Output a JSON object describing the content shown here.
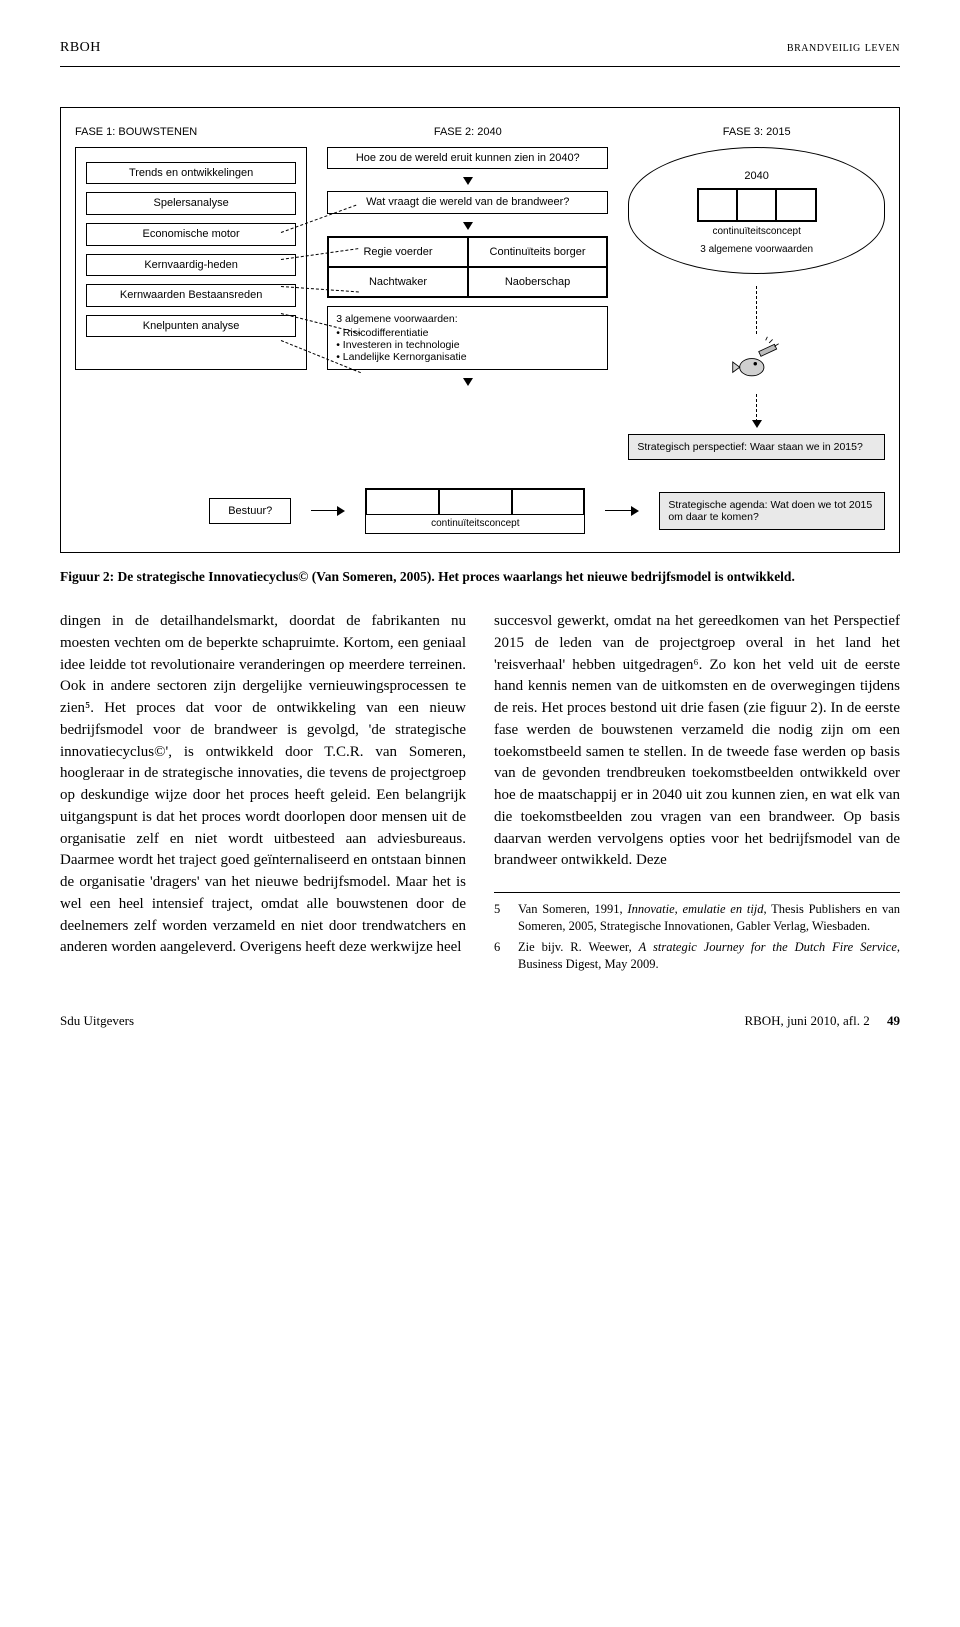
{
  "header": {
    "left": "RBOH",
    "right": "brandveilig leven"
  },
  "fig": {
    "col1": {
      "label": "FASE 1: BOUWSTENEN",
      "items": [
        "Trends en ontwikkelingen",
        "Spelersanalyse",
        "Economische motor",
        "Kernvaardig-heden",
        "Kernwaarden Bestaansreden",
        "Knelpunten analyse"
      ],
      "bestuur": "Bestuur?"
    },
    "col2": {
      "label": "FASE 2: 2040",
      "q1": "Hoe zou de wereld eruit kunnen zien in 2040?",
      "q2": "Wat vraagt die wereld van de brandweer?",
      "grid": [
        "Regie voerder",
        "Continuïteits borger",
        "Nachtwaker",
        "Naoberschap"
      ],
      "bul_title": "3 algemene voorwaarden:",
      "bul": [
        "• Risicodifferentiatie",
        "• Investeren in technologie",
        "• Landelijke Kernorganisatie"
      ],
      "cont": "continuïteitsconcept"
    },
    "col3": {
      "label": "FASE 3: 2015",
      "year": "2040",
      "cont": "continuïteitsconcept",
      "vw": "3 algemene voorwaarden",
      "sp": "Strategisch perspectief: Waar staan we in 2015?",
      "sa": "Strategische agenda: Wat doen we tot 2015 om daar te komen?"
    }
  },
  "caption": "Figuur 2: De strategische Innovatiecyclus© (Van Someren, 2005). Het proces waarlangs het nieuwe bedrijfsmodel is ontwikkeld.",
  "body": {
    "left": "dingen in de detailhandelsmarkt, doordat de fabrikanten nu moesten vechten om de beperkte schapruimte. Kortom, een geniaal idee leidde tot revolutionaire veranderingen op meerdere terreinen. Ook in andere sectoren zijn dergelijke vernieuwingsprocessen te zien⁵.\nHet proces dat voor de ontwikkeling van een nieuw bedrijfsmodel voor de brandweer is gevolgd, 'de strategische innovatiecyclus©', is ontwikkeld door T.C.R. van Someren, hoogleraar in de strategische innovaties, die tevens de projectgroep op deskundige wijze door het proces heeft geleid. Een belangrijk uitgangspunt is dat het proces wordt doorlopen door mensen uit de organisatie zelf en niet wordt uitbesteed aan adviesbureaus. Daarmee wordt het traject goed geïnternaliseerd en ontstaan binnen de organisatie 'dragers' van het nieuwe bedrijfsmodel. Maar het is wel een heel intensief traject, omdat alle bouwstenen door de deelnemers zelf worden verzameld en niet door trendwatchers en anderen worden aangeleverd. Overigens heeft deze werkwijze heel",
    "right": "succesvol gewerkt, omdat na het gereedkomen van het Perspectief 2015 de leden van de projectgroep overal in het land het 'reisverhaal' hebben uitgedragen⁶. Zo kon het veld uit de eerste hand kennis nemen van de uitkomsten en de overwegingen tijdens de reis.\nHet proces bestond uit drie fasen (zie figuur 2). In de eerste fase werden de bouwstenen verzameld die nodig zijn om een toekomstbeeld samen te stellen. In de tweede fase werden op basis van de gevonden trendbreuken toekomstbeelden ontwikkeld over hoe de maatschappij er in 2040 uit zou kunnen zien, en wat elk van die toekomstbeelden zou vragen van een brandweer. Op basis daarvan werden vervolgens opties voor het bedrijfsmodel van de brandweer ontwikkeld. Deze"
  },
  "footnotes": [
    {
      "n": "5",
      "t": "Van Someren, 1991, <em>Innovatie, emulatie en tijd</em>, Thesis Publishers en van Someren, 2005, Strategische Innovationen, Gabler Verlag, Wiesbaden."
    },
    {
      "n": "6",
      "t": "Zie bijv. R. Weewer, <em>A strategic Journey for the Dutch Fire Service</em>, Business Digest, May 2009."
    }
  ],
  "footer": {
    "left": "Sdu Uitgevers",
    "right": "RBOH, juni 2010, afl. 2",
    "page": "49"
  }
}
